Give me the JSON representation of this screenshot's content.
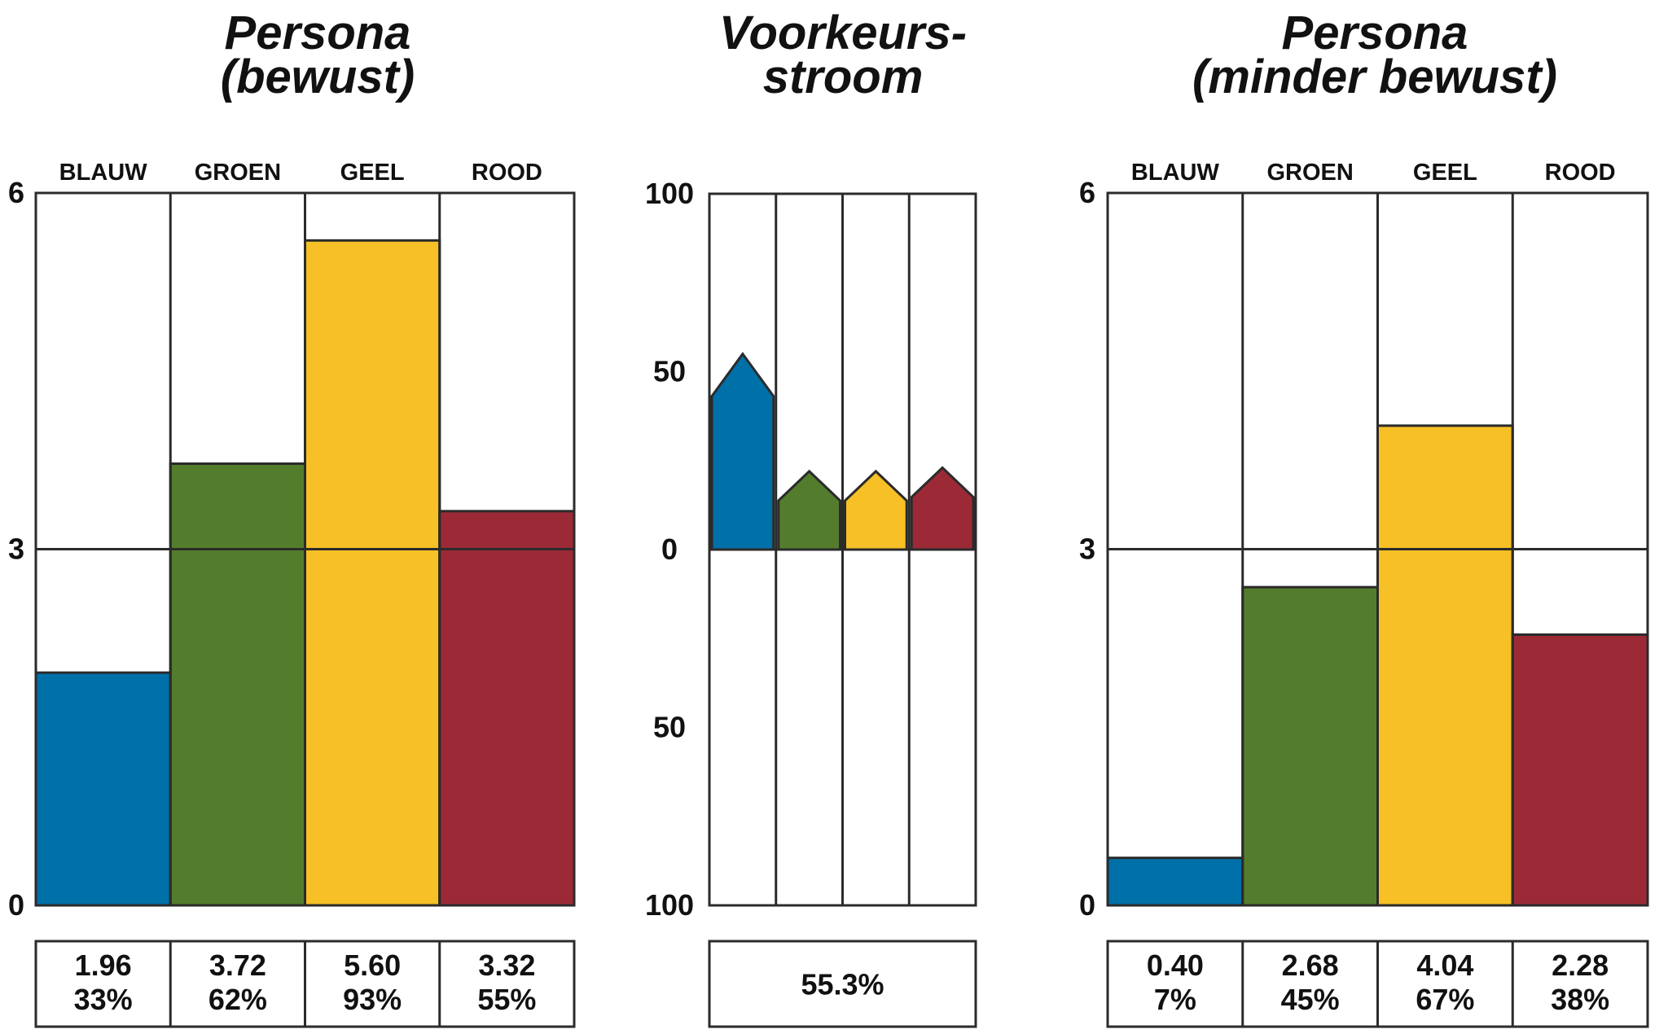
{
  "chart_data": [
    {
      "type": "bar",
      "title_line1": "Persona",
      "title_line2": "(bewust)",
      "categories": [
        "BLAUW",
        "GROEN",
        "GEEL",
        "ROOD"
      ],
      "values": [
        1.96,
        3.72,
        5.6,
        3.32
      ],
      "percentages": [
        "33%",
        "62%",
        "93%",
        "55%"
      ],
      "value_labels": [
        "1.96",
        "3.72",
        "5.60",
        "3.32"
      ],
      "yticks": [
        "0",
        "3",
        "6"
      ],
      "ylim": [
        0,
        6
      ],
      "colors": [
        "#0070a8",
        "#537d2c",
        "#f6c026",
        "#9c2a36"
      ]
    },
    {
      "type": "bar",
      "title_line1": "Voorkeurs-",
      "title_line2": "stroom",
      "series": [
        {
          "name": "Voorkeursstroom",
          "values": [
            55,
            22,
            22,
            23
          ]
        }
      ],
      "colors": [
        "#0070a8",
        "#537d2c",
        "#f6c026",
        "#9c2a36"
      ],
      "yticks": [
        "100",
        "50",
        "0",
        "50",
        "100"
      ],
      "ylim": [
        -100,
        100
      ],
      "summary": "55.3%"
    },
    {
      "type": "bar",
      "title_line1": "Persona",
      "title_line2": "(minder bewust)",
      "categories": [
        "BLAUW",
        "GROEN",
        "GEEL",
        "ROOD"
      ],
      "values": [
        0.4,
        2.68,
        4.04,
        2.28
      ],
      "percentages": [
        "7%",
        "45%",
        "67%",
        "38%"
      ],
      "value_labels": [
        "0.40",
        "2.68",
        "4.04",
        "2.28"
      ],
      "yticks": [
        "0",
        "3",
        "6"
      ],
      "ylim": [
        0,
        6
      ],
      "colors": [
        "#0070a8",
        "#537d2c",
        "#f6c026",
        "#9c2a36"
      ]
    }
  ]
}
